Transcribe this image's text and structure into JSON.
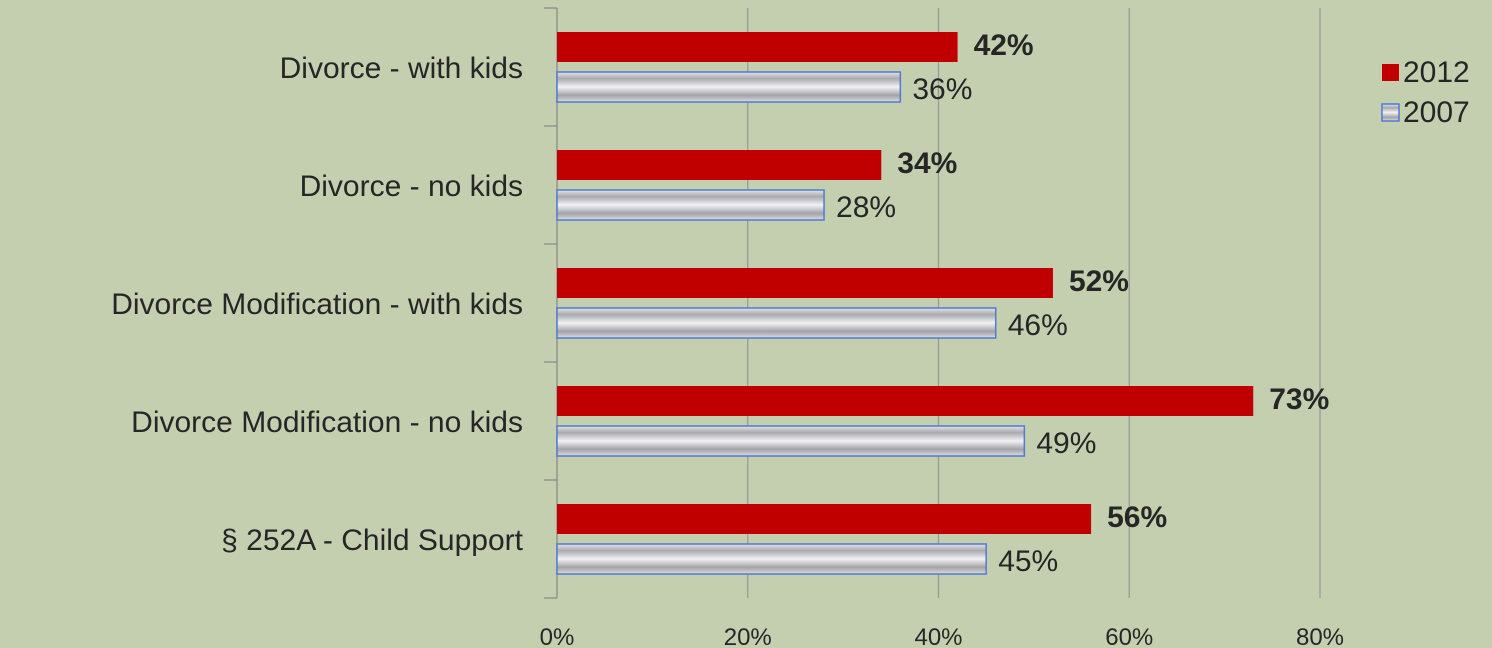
{
  "chart_data": {
    "type": "bar",
    "orientation": "horizontal",
    "categories": [
      "Divorce - with kids",
      "Divorce - no kids",
      "Divorce Modification - with kids",
      "Divorce Modification - no kids",
      "§ 252A - Child Support"
    ],
    "series": [
      {
        "name": "2012",
        "values": [
          42,
          34,
          52,
          73,
          56
        ],
        "labels": [
          "42%",
          "34%",
          "52%",
          "73%",
          "56%"
        ],
        "color": "#c00000"
      },
      {
        "name": "2007",
        "values": [
          36,
          28,
          46,
          49,
          45
        ],
        "labels": [
          "36%",
          "28%",
          "46%",
          "49%",
          "45%"
        ],
        "color": "#b8b8bc"
      }
    ],
    "x_ticks": [
      "0%",
      "20%",
      "40%",
      "60%",
      "80%"
    ],
    "xlim": [
      0,
      80
    ],
    "grid": true,
    "legend_position": "top-right",
    "background_color": "#c4cfb0"
  }
}
